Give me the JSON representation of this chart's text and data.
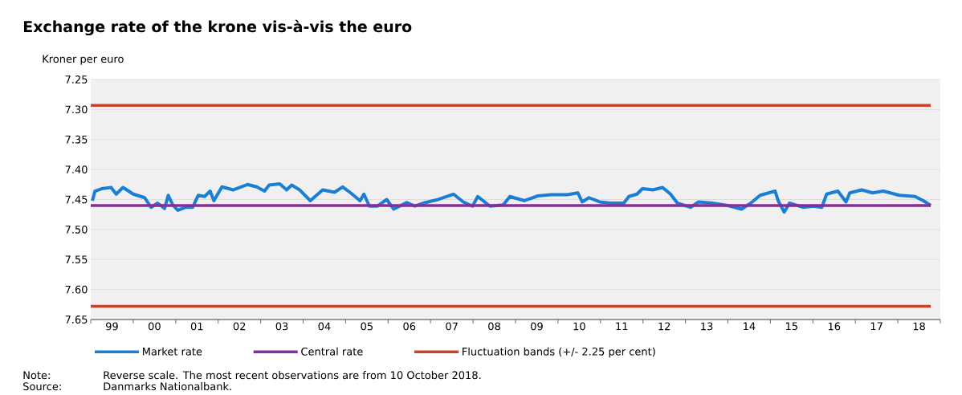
{
  "chart_data": {
    "type": "line",
    "title": "Exchange rate of the krone vis-à-vis the euro",
    "ylabel": "Kroner per euro",
    "ylim": [
      7.65,
      7.25
    ],
    "yticks": [
      7.25,
      {
        "value": 7.3,
        "label": "7.30"
      },
      7.35,
      {
        "value": 7.4,
        "label": "7.40"
      },
      7.45,
      {
        "value": 7.5,
        "label": "7.50"
      },
      7.55,
      {
        "value": 7.6,
        "label": "7.60"
      },
      7.65
    ],
    "xlim": [
      "1999",
      "2019"
    ],
    "xticks": [
      {
        "value": "1999",
        "label": null
      },
      {
        "value": "1999-07-01",
        "label": "99"
      },
      {
        "value": "2000",
        "label": null
      },
      {
        "value": "2000-07-01",
        "label": "00"
      },
      {
        "value": "2001",
        "label": null
      },
      {
        "value": "2001-07-01",
        "label": "01"
      },
      {
        "value": "2002",
        "label": null
      },
      {
        "value": "2002-07-01",
        "label": "02"
      },
      {
        "value": "2003",
        "label": null
      },
      {
        "value": "2003-07-01",
        "label": "03"
      },
      {
        "value": "2004",
        "label": null
      },
      {
        "value": "2004-07-01",
        "label": "04"
      },
      {
        "value": "2005",
        "label": null
      },
      {
        "value": "2005-07-01",
        "label": "05"
      },
      {
        "value": "2006",
        "label": null
      },
      {
        "value": "2006-07-01",
        "label": "06"
      },
      {
        "value": "2007",
        "label": null
      },
      {
        "value": "2007-07-01",
        "label": "07"
      },
      {
        "value": "2008",
        "label": null
      },
      {
        "value": "2008-07-01",
        "label": "08"
      },
      {
        "value": "2009",
        "label": null
      },
      {
        "value": "2009-07-01",
        "label": "09"
      },
      {
        "value": "2010",
        "label": null
      },
      {
        "value": "2010-07-01",
        "label": "10"
      },
      {
        "value": "2011",
        "label": null
      },
      {
        "value": "2011-07-01",
        "label": "11"
      },
      {
        "value": "2012",
        "label": null
      },
      {
        "value": "2012-07-01",
        "label": "12"
      },
      {
        "value": "2013",
        "label": null
      },
      {
        "value": "2013-07-01",
        "label": "13"
      },
      {
        "value": "2014",
        "label": null
      },
      {
        "value": "2014-07-01",
        "label": "14"
      },
      {
        "value": "2015",
        "label": null
      },
      {
        "value": "2015-07-01",
        "label": "15"
      },
      {
        "value": "2016",
        "label": null
      },
      {
        "value": "2016-07-01",
        "label": "16"
      },
      {
        "value": "2017",
        "label": null
      },
      {
        "value": "2017-07-01",
        "label": "17"
      },
      {
        "value": "2018",
        "label": null
      },
      {
        "value": "2018-07-01",
        "label": "18"
      },
      {
        "value": "2019",
        "label": null
      }
    ],
    "grid": "y",
    "legend": "bottom",
    "series": [
      {
        "name": "Market rate",
        "color": "#1a7fd4",
        "x": [
          "1999-01-15",
          "1999-02-07",
          "1999-04-04",
          "1999-06-24",
          "1999-08-07",
          "1999-10-04",
          "2000-01-01",
          "2000-04-08",
          "2000-06-02",
          "2000-07-28",
          "2000-09-27",
          "2000-10-28",
          "2000-12-06",
          "2001-01-19",
          "2001-03-27",
          "2001-05-25",
          "2001-07-12",
          "2001-09-06",
          "2001-10-23",
          "2001-11-25",
          "2002-02-03",
          "2002-05-07",
          "2002-07-15",
          "2002-09-09",
          "2002-11-28",
          "2003-02-04",
          "2003-03-13",
          "2003-06-13",
          "2003-08-11",
          "2003-09-24",
          "2003-12-02",
          "2004-03-02",
          "2004-06-17",
          "2004-09-27",
          "2004-12-06",
          "2005-02-14",
          "2005-05-03",
          "2005-06-06",
          "2005-07-23",
          "2005-10-01",
          "2005-12-20",
          "2006-02-18",
          "2006-06-09",
          "2006-08-18",
          "2006-11-18",
          "2007-03-07",
          "2007-07-15",
          "2007-10-08",
          "2007-12-27",
          "2008-02-11",
          "2008-05-25",
          "2008-09-17",
          "2008-11-14",
          "2009-03-17",
          "2009-07-12",
          "2009-11-03",
          "2010-03-20",
          "2010-06-20",
          "2010-07-26",
          "2010-09-24",
          "2010-12-24",
          "2011-03-24",
          "2011-07-19",
          "2011-09-02",
          "2011-11-11",
          "2011-12-27",
          "2012-03-27",
          "2012-06-17",
          "2012-08-25",
          "2012-10-23",
          "2013-02-14",
          "2013-04-23",
          "2013-08-18",
          "2014-01-01",
          "2014-04-26",
          "2014-07-15",
          "2014-10-04",
          "2015-02-11",
          "2015-03-07",
          "2015-04-28",
          "2015-06-13",
          "2015-10-08",
          "2016-01-08",
          "2016-03-17",
          "2016-04-28",
          "2016-08-03",
          "2016-10-12",
          "2016-11-14",
          "2017-02-25",
          "2017-05-28",
          "2017-08-28",
          "2018-01-15",
          "2018-05-28",
          "2018-08-07",
          "2018-10-10"
        ],
        "values": [
          7.452,
          7.436,
          7.432,
          7.43,
          7.441,
          7.43,
          7.441,
          7.447,
          7.463,
          7.456,
          7.465,
          7.443,
          7.459,
          7.468,
          7.463,
          7.463,
          7.443,
          7.445,
          7.436,
          7.452,
          7.429,
          7.434,
          7.429,
          7.425,
          7.429,
          7.436,
          7.426,
          7.424,
          7.434,
          7.426,
          7.434,
          7.452,
          7.434,
          7.438,
          7.429,
          7.439,
          7.452,
          7.441,
          7.461,
          7.461,
          7.45,
          7.466,
          7.455,
          7.461,
          7.455,
          7.45,
          7.441,
          7.454,
          7.461,
          7.445,
          7.461,
          7.459,
          7.445,
          7.452,
          7.444,
          7.442,
          7.442,
          7.439,
          7.454,
          7.447,
          7.454,
          7.456,
          7.456,
          7.445,
          7.441,
          7.432,
          7.434,
          7.43,
          7.441,
          7.456,
          7.463,
          7.454,
          7.456,
          7.46,
          7.466,
          7.456,
          7.443,
          7.436,
          7.452,
          7.471,
          7.456,
          7.463,
          7.461,
          7.463,
          7.441,
          7.436,
          7.454,
          7.439,
          7.434,
          7.439,
          7.436,
          7.443,
          7.445,
          7.452,
          7.46
        ]
      },
      {
        "name": "Central rate",
        "color": "#8a2a9b",
        "x": [
          "1999-01-01",
          "2018-10-10"
        ],
        "values": [
          7.46,
          7.46
        ]
      },
      {
        "name": "Fluctuation bands (+/- 2.25 per cent)",
        "color": "#c8432b",
        "x": [
          "1999-01-01",
          "2018-10-10"
        ],
        "values": [
          7.293,
          7.293
        ]
      },
      {
        "color": "#c8432b",
        "x": [
          "1999-01-01",
          "2018-10-10"
        ],
        "values": [
          7.628,
          7.628
        ]
      }
    ],
    "annotations": [
      "Note:",
      "Reverse scale. The most recent observations are from 10 October 2018.",
      "Source:",
      "Danmarks Nationalbank."
    ]
  }
}
